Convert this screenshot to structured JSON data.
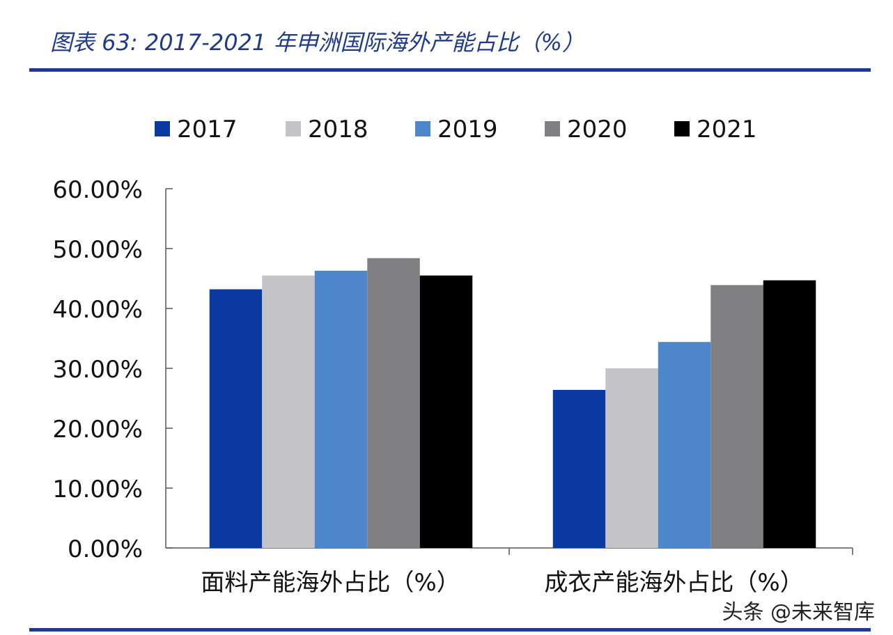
{
  "header": {
    "title": "图表 63:  2017-2021 年申洲国际海外产能占比（%）"
  },
  "watermark": "头条 @未来智库",
  "chart_data": {
    "type": "bar",
    "title": "2017-2021 年申洲国际海外产能占比（%）",
    "categories": [
      "面料产能海外占比（%）",
      "成衣产能海外占比（%）"
    ],
    "series": [
      {
        "name": "2017",
        "color": "#0a3aa0",
        "values": [
          43.2,
          26.4
        ]
      },
      {
        "name": "2018",
        "color": "#c4c4c8",
        "values": [
          45.5,
          30.0
        ]
      },
      {
        "name": "2019",
        "color": "#4e86cc",
        "values": [
          46.3,
          34.4
        ]
      },
      {
        "name": "2020",
        "color": "#808083",
        "values": [
          48.4,
          43.9
        ]
      },
      {
        "name": "2021",
        "color": "#000000",
        "values": [
          45.5,
          44.7
        ]
      }
    ],
    "ylim": [
      0,
      60
    ],
    "yticks": [
      0,
      10,
      20,
      30,
      40,
      50,
      60
    ],
    "ytick_labels": [
      "0.00%",
      "10.00%",
      "20.00%",
      "30.00%",
      "40.00%",
      "50.00%",
      "60.00%"
    ],
    "xlabel": "",
    "ylabel": "",
    "legend": "top",
    "grid": false
  }
}
